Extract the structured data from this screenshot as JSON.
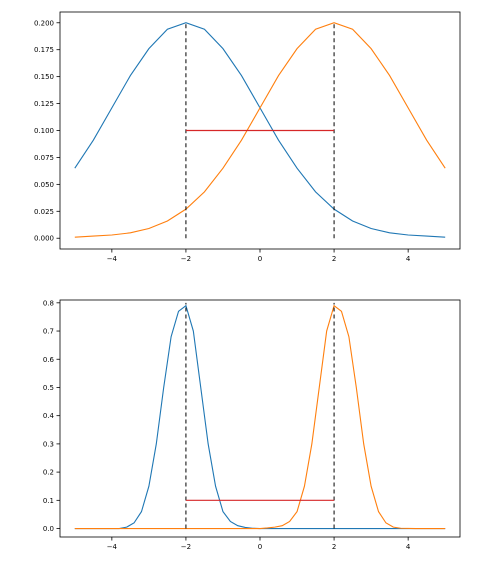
{
  "chart_data": [
    {
      "type": "line",
      "title": "",
      "xlabel": "",
      "ylabel": "",
      "xlim": [
        -5.4,
        5.4
      ],
      "ylim": [
        -0.01,
        0.21
      ],
      "xticks": [
        -4,
        -2,
        0,
        2,
        4
      ],
      "xtick_labels": [
        "−4",
        "−2",
        "0",
        "2",
        "4"
      ],
      "yticks": [
        0.0,
        0.025,
        0.05,
        0.075,
        0.1,
        0.125,
        0.15,
        0.175,
        0.2
      ],
      "ytick_labels": [
        "0.000",
        "0.025",
        "0.050",
        "0.075",
        "0.100",
        "0.125",
        "0.150",
        "0.175",
        "0.200"
      ],
      "grid": false,
      "colors": {
        "series_a": "#1f77b4",
        "series_b": "#ff7f0e",
        "segment": "#d62728",
        "marker": "#000000"
      },
      "series": [
        {
          "x": [
            -5.0,
            -4.5,
            -4.0,
            -3.5,
            -3.0,
            -2.5,
            -2.0,
            -1.5,
            -1.0,
            -0.5,
            0.0,
            0.5,
            1.0,
            1.5,
            2.0,
            2.5,
            3.0,
            3.5,
            4.0,
            4.5,
            5.0
          ],
          "values": [
            0.065,
            0.091,
            0.121,
            0.151,
            0.176,
            0.194,
            0.2,
            0.194,
            0.176,
            0.151,
            0.121,
            0.091,
            0.065,
            0.043,
            0.027,
            0.016,
            0.009,
            0.005,
            0.003,
            0.002,
            0.001
          ]
        },
        {
          "x": [
            -5.0,
            -4.5,
            -4.0,
            -3.5,
            -3.0,
            -2.5,
            -2.0,
            -1.5,
            -1.0,
            -0.5,
            0.0,
            0.5,
            1.0,
            1.5,
            2.0,
            2.5,
            3.0,
            3.5,
            4.0,
            4.5,
            5.0
          ],
          "values": [
            0.001,
            0.002,
            0.003,
            0.005,
            0.009,
            0.016,
            0.027,
            0.043,
            0.065,
            0.091,
            0.121,
            0.151,
            0.176,
            0.194,
            0.2,
            0.194,
            0.176,
            0.151,
            0.121,
            0.091,
            0.065
          ]
        }
      ],
      "vertical_lines": [
        {
          "x": -2,
          "y_from": 0,
          "y_to": 0.2
        },
        {
          "x": 2,
          "y_from": 0,
          "y_to": 0.2
        }
      ],
      "horizontal_segment": {
        "x_from": -2,
        "x_to": 2,
        "y": 0.1
      }
    },
    {
      "type": "line",
      "title": "",
      "xlabel": "",
      "ylabel": "",
      "xlim": [
        -5.4,
        5.4
      ],
      "ylim": [
        -0.03,
        0.81
      ],
      "xticks": [
        -4,
        -2,
        0,
        2,
        4
      ],
      "xtick_labels": [
        "−4",
        "−2",
        "0",
        "2",
        "4"
      ],
      "yticks": [
        0.0,
        0.1,
        0.2,
        0.3,
        0.4,
        0.5,
        0.6,
        0.7,
        0.8
      ],
      "ytick_labels": [
        "0.0",
        "0.1",
        "0.2",
        "0.3",
        "0.4",
        "0.5",
        "0.6",
        "0.7",
        "0.8"
      ],
      "grid": false,
      "colors": {
        "series_a": "#1f77b4",
        "series_b": "#ff7f0e",
        "segment": "#d62728",
        "marker": "#000000"
      },
      "series": [
        {
          "x": [
            -5.0,
            -3.8,
            -3.6,
            -3.4,
            -3.2,
            -3.0,
            -2.8,
            -2.6,
            -2.4,
            -2.2,
            -2.0,
            -1.8,
            -1.6,
            -1.4,
            -1.2,
            -1.0,
            -0.8,
            -0.6,
            -0.4,
            -0.2,
            0.0,
            0.4,
            1.0,
            5.0
          ],
          "values": [
            0.0,
            0.0,
            0.005,
            0.02,
            0.06,
            0.15,
            0.3,
            0.5,
            0.68,
            0.77,
            0.79,
            0.7,
            0.5,
            0.3,
            0.15,
            0.06,
            0.025,
            0.01,
            0.004,
            0.001,
            0.0,
            0.0,
            0.0,
            0.0
          ]
        },
        {
          "x": [
            -5.0,
            -1.0,
            0.0,
            0.2,
            0.4,
            0.6,
            0.8,
            1.0,
            1.2,
            1.4,
            1.6,
            1.8,
            2.0,
            2.2,
            2.4,
            2.6,
            2.8,
            3.0,
            3.2,
            3.4,
            3.6,
            3.8,
            4.2,
            5.0
          ],
          "values": [
            0.0,
            0.0,
            0.0,
            0.002,
            0.005,
            0.01,
            0.025,
            0.06,
            0.15,
            0.3,
            0.5,
            0.7,
            0.79,
            0.77,
            0.68,
            0.5,
            0.3,
            0.15,
            0.06,
            0.02,
            0.005,
            0.001,
            0.0,
            0.0
          ]
        }
      ],
      "vertical_lines": [
        {
          "x": -2,
          "y_from": 0,
          "y_to": 0.8
        },
        {
          "x": 2,
          "y_from": 0,
          "y_to": 0.8
        }
      ],
      "horizontal_segment": {
        "x_from": -2,
        "x_to": 2,
        "y": 0.1
      }
    }
  ]
}
